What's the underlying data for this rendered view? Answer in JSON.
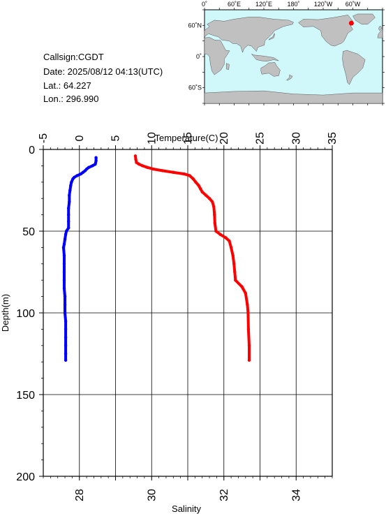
{
  "station": {
    "callsign": "Callsign:CGDT",
    "date": "Date:  2025/08/12 04:13(UTC)",
    "lat": "Lat.:   64.227",
    "lon": "Lon.:  296.990"
  },
  "map": {
    "top_labels": [
      "0˚",
      "60˚E",
      "120˚E",
      "180˚",
      "120˚W",
      "60˚W"
    ],
    "lat_labels": [
      "60˚N",
      "0˚",
      "60˚S"
    ],
    "marker_lat": 64.227,
    "marker_lon": 296.99,
    "ocean_color": "#d0f8fb",
    "land_color": "#c0c0c0",
    "marker_color": "#ff0000"
  },
  "chart_data": {
    "type": "line",
    "ylabel": "Depth(m)",
    "ylim": [
      0,
      200
    ],
    "y_ticks": [
      0,
      50,
      100,
      150,
      200
    ],
    "top_axis": {
      "label": "Temperature(C)",
      "range": [
        -5,
        35
      ],
      "ticks": [
        -5,
        0,
        5,
        10,
        15,
        20,
        25,
        30,
        35
      ]
    },
    "bottom_axis": {
      "label": "Salinity",
      "range": [
        27,
        35
      ],
      "ticks": [
        28,
        30,
        32,
        34
      ]
    },
    "series": [
      {
        "axis": "temperature",
        "color": "#0000ff",
        "points": [
          [
            2.3,
            5
          ],
          [
            2.3,
            7
          ],
          [
            2.2,
            9
          ],
          [
            1.8,
            10
          ],
          [
            1.3,
            11
          ],
          [
            1.0,
            12
          ],
          [
            0.8,
            13
          ],
          [
            0.5,
            14
          ],
          [
            0.2,
            15
          ],
          [
            -0.3,
            16
          ],
          [
            -0.7,
            17
          ],
          [
            -0.9,
            18
          ],
          [
            -1.1,
            20
          ],
          [
            -1.2,
            22
          ],
          [
            -1.3,
            25
          ],
          [
            -1.4,
            28
          ],
          [
            -1.4,
            32
          ],
          [
            -1.5,
            36
          ],
          [
            -1.5,
            40
          ],
          [
            -1.5,
            44
          ],
          [
            -1.5,
            48
          ],
          [
            -1.8,
            50
          ],
          [
            -1.9,
            52
          ],
          [
            -2.0,
            55
          ],
          [
            -2.1,
            58
          ],
          [
            -2.2,
            60
          ],
          [
            -2.1,
            65
          ],
          [
            -2.1,
            70
          ],
          [
            -2.1,
            75
          ],
          [
            -2.1,
            80
          ],
          [
            -2.1,
            85
          ],
          [
            -2.0,
            90
          ],
          [
            -2.0,
            95
          ],
          [
            -2.0,
            100
          ],
          [
            -1.9,
            105
          ],
          [
            -1.9,
            110
          ],
          [
            -1.9,
            115
          ],
          [
            -1.9,
            120
          ],
          [
            -1.9,
            125
          ],
          [
            -1.9,
            129
          ]
        ]
      },
      {
        "axis": "salinity",
        "color": "#ff0000",
        "points": [
          [
            29.55,
            4
          ],
          [
            29.56,
            6
          ],
          [
            29.58,
            8
          ],
          [
            29.65,
            9
          ],
          [
            29.75,
            10
          ],
          [
            29.88,
            11
          ],
          [
            30.05,
            12
          ],
          [
            30.3,
            13
          ],
          [
            30.6,
            14
          ],
          [
            30.9,
            15
          ],
          [
            31.05,
            16
          ],
          [
            31.15,
            18
          ],
          [
            31.22,
            20
          ],
          [
            31.3,
            22
          ],
          [
            31.35,
            24
          ],
          [
            31.4,
            26
          ],
          [
            31.5,
            28
          ],
          [
            31.6,
            30
          ],
          [
            31.68,
            32
          ],
          [
            31.72,
            35
          ],
          [
            31.74,
            40
          ],
          [
            31.75,
            45
          ],
          [
            31.78,
            50
          ],
          [
            31.9,
            52
          ],
          [
            32.05,
            54
          ],
          [
            32.15,
            56
          ],
          [
            32.2,
            60
          ],
          [
            32.25,
            65
          ],
          [
            32.28,
            70
          ],
          [
            32.3,
            75
          ],
          [
            32.32,
            80
          ],
          [
            32.5,
            84
          ],
          [
            32.6,
            88
          ],
          [
            32.65,
            95
          ],
          [
            32.67,
            100
          ],
          [
            32.68,
            110
          ],
          [
            32.7,
            120
          ],
          [
            32.7,
            129
          ]
        ]
      }
    ],
    "grid": true
  }
}
